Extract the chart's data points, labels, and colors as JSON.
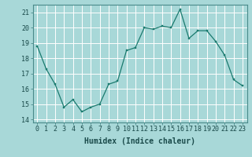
{
  "x": [
    0,
    1,
    2,
    3,
    4,
    5,
    6,
    7,
    8,
    9,
    10,
    11,
    12,
    13,
    14,
    15,
    16,
    17,
    18,
    19,
    20,
    21,
    22,
    23
  ],
  "y": [
    18.8,
    17.3,
    16.3,
    14.8,
    15.3,
    14.5,
    14.8,
    15.0,
    16.3,
    16.5,
    18.5,
    18.7,
    20.0,
    19.9,
    20.1,
    20.0,
    21.2,
    19.3,
    19.8,
    19.8,
    19.1,
    18.2,
    16.6,
    16.2
  ],
  "line_color": "#1a7a6e",
  "marker_color": "#1a7a6e",
  "bg_color": "#a8d8d8",
  "grid_color": "#ffffff",
  "xlabel": "Humidex (Indice chaleur)",
  "xlim": [
    -0.5,
    23.5
  ],
  "ylim": [
    13.8,
    21.5
  ],
  "xticks": [
    0,
    1,
    2,
    3,
    4,
    5,
    6,
    7,
    8,
    9,
    10,
    11,
    12,
    13,
    14,
    15,
    16,
    17,
    18,
    19,
    20,
    21,
    22,
    23
  ],
  "yticks": [
    14,
    15,
    16,
    17,
    18,
    19,
    20,
    21
  ],
  "title_fontsize": 7,
  "xlabel_fontsize": 7,
  "tick_fontsize": 6
}
